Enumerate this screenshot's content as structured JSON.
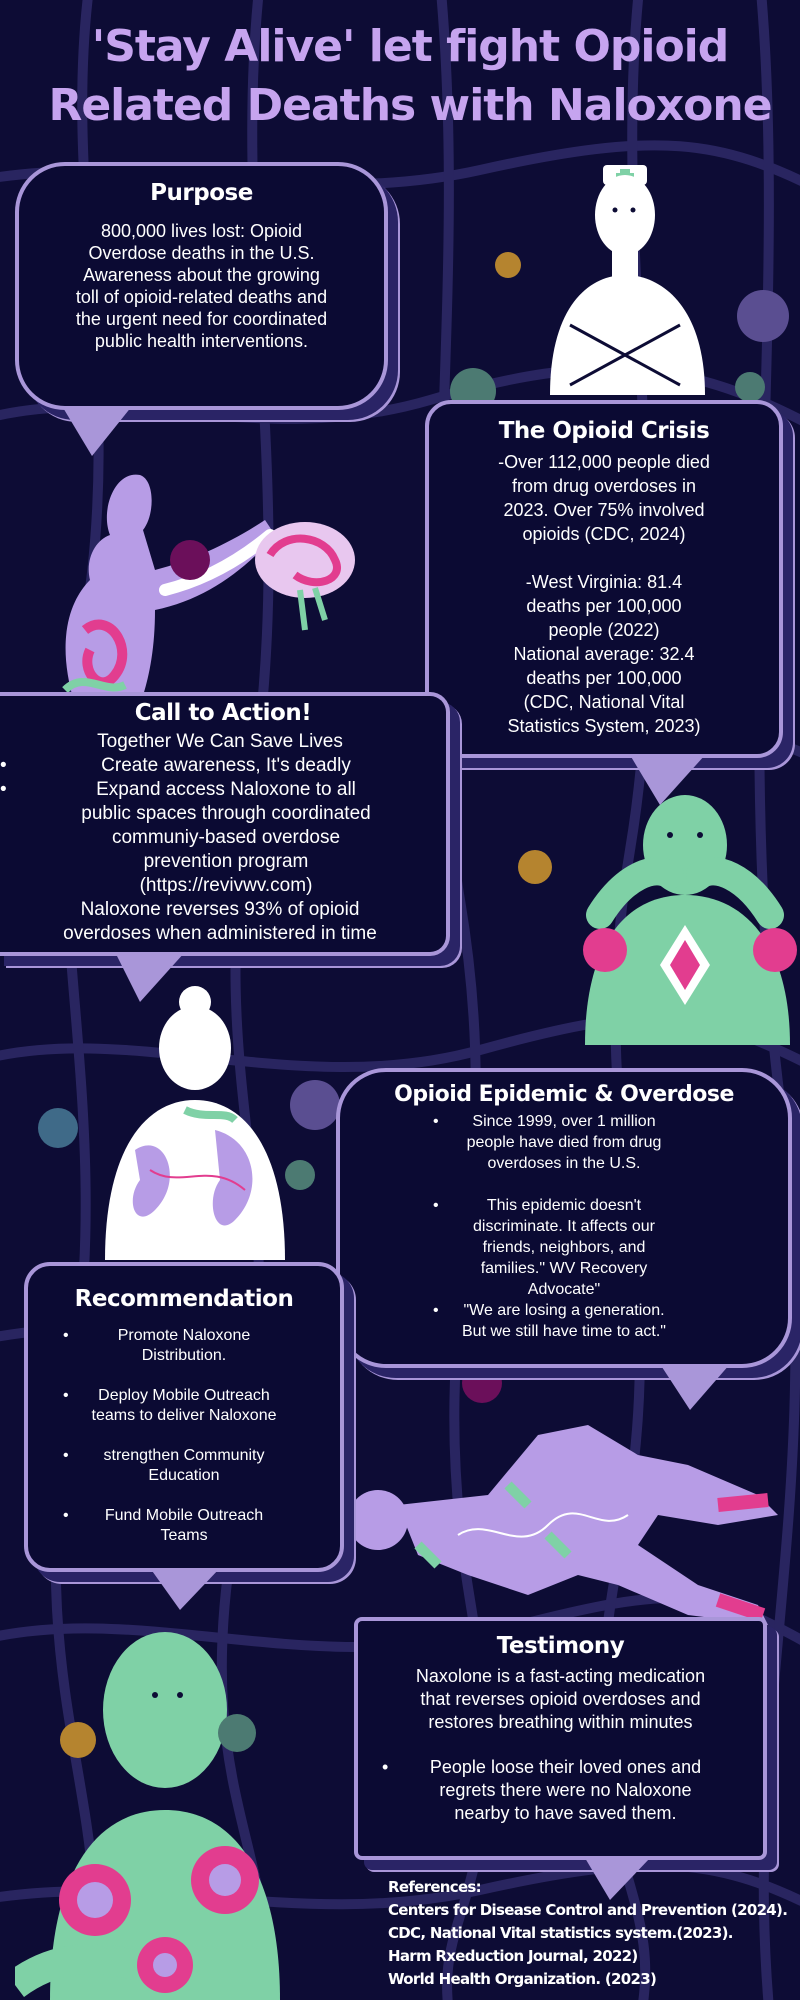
{
  "title": "'Stay Alive' let fight Opioid Related Deaths with Naloxone",
  "purpose": {
    "heading": "Purpose",
    "lines": [
      "800,000 lives lost: Opioid",
      "Overdose deaths in the U.S.",
      "Awareness about the growing",
      "toll of opioid-related deaths and",
      "the urgent need for coordinated",
      "public health interventions."
    ]
  },
  "crisis": {
    "heading": "The Opioid Crisis",
    "para1": [
      "-Over 112,000 people died",
      "from drug overdoses in",
      "2023. Over 75% involved",
      "opioids (CDC, 2024)"
    ],
    "para2": [
      "-West Virginia: 81.4",
      "deaths per 100,000",
      "people (2022)",
      "National average: 32.4",
      "deaths per 100,000",
      "(CDC, National Vital",
      "Statistics System, 2023)"
    ]
  },
  "call": {
    "heading": "Call to Action!",
    "intro": "Together We Can Save Lives",
    "items": [
      {
        "lines": [
          "Create awareness, It's deadly"
        ]
      },
      {
        "lines": [
          "Expand access Naloxone to all",
          "public spaces through coordinated",
          "communiy-based overdose",
          "prevention program",
          "(https://revivwv.com)"
        ]
      }
    ],
    "closing": [
      "Naloxone reverses 93% of opioid",
      "overdoses when administered in time"
    ]
  },
  "epidemic": {
    "heading": "Opioid Epidemic & Overdose",
    "items": [
      {
        "lines": [
          "Since 1999, over 1 million",
          "people have died from drug",
          "overdoses in the U.S."
        ]
      },
      {
        "lines": [
          "This epidemic doesn't",
          "discriminate. It affects our",
          "friends, neighbors, and",
          "families.\" WV Recovery",
          "Advocate\""
        ]
      },
      {
        "lines": [
          "\"We are losing a generation.",
          "But we still have time to act.\""
        ]
      }
    ]
  },
  "recommendation": {
    "heading": "Recommendation",
    "items": [
      {
        "lines": [
          "Promote Naloxone",
          "Distribution."
        ]
      },
      {
        "lines": [
          "Deploy Mobile Outreach",
          "teams to deliver Naloxone"
        ]
      },
      {
        "lines": [
          "strengthen Community",
          "Education"
        ]
      },
      {
        "lines": [
          "Fund Mobile Outreach",
          "Teams"
        ]
      }
    ]
  },
  "testimony": {
    "heading": "Testimony",
    "para": [
      "Naxolone is a fast-acting medication",
      "that reverses opioid overdoses and",
      "restores breathing within minutes"
    ],
    "item": [
      "People loose their loved ones and",
      "regrets there were no Naloxone",
      "nearby to have saved them."
    ]
  },
  "references": {
    "heading": "References:",
    "items": [
      "Centers for Disease Control and Prevention (2024).",
      "CDC, National Vital statistics system.(2023).",
      "Harm Rxeduction Journal, 2022)",
      "World Health Organization. (2023)"
    ]
  },
  "colors": {
    "background": "#0d0c35",
    "title": "#c6a4ef",
    "bubble_border": "#a996d9",
    "lavender": "#b79ce6",
    "mint": "#7fd1a6",
    "pink": "#e23d8f"
  }
}
